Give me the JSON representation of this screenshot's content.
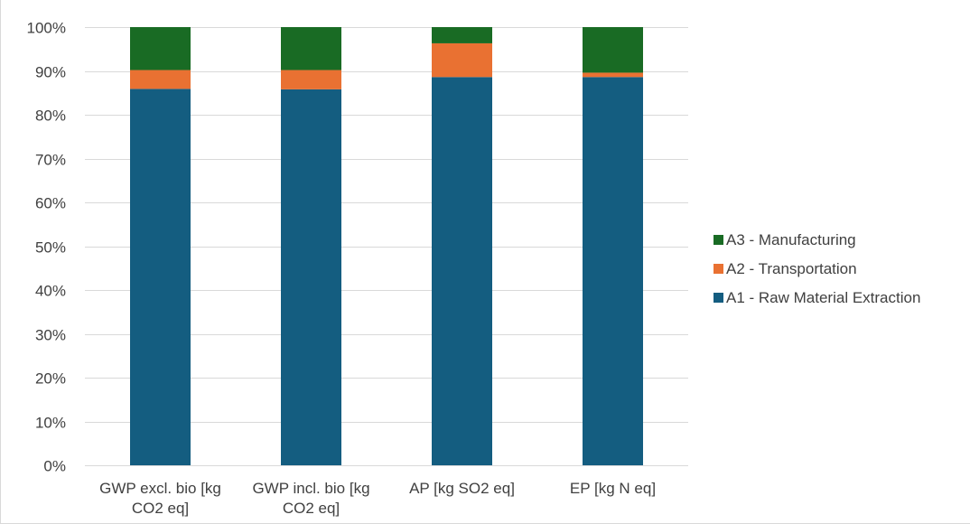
{
  "chart_data": {
    "type": "bar",
    "stacked": true,
    "title": "",
    "xlabel": "",
    "ylabel": "",
    "ylim": [
      0,
      100
    ],
    "y_tick_format": "percent",
    "y_ticks": [
      "0%",
      "10%",
      "20%",
      "30%",
      "40%",
      "50%",
      "60%",
      "70%",
      "80%",
      "90%",
      "100%"
    ],
    "grid": "horizontal",
    "legend_position": "right",
    "categories": [
      [
        "GWP excl. bio [kg",
        "CO2 eq]"
      ],
      [
        "GWP incl. bio [kg",
        "CO2 eq]"
      ],
      [
        "AP [kg SO2 eq]"
      ],
      [
        "EP [kg N eq]"
      ]
    ],
    "series": [
      {
        "name": "A1 - Raw Material Extraction",
        "color": "#145d80",
        "values": [
          85.9,
          85.8,
          88.6,
          88.6
        ]
      },
      {
        "name": "A2 - Transportation",
        "color": "#e97132",
        "values": [
          4.3,
          4.4,
          7.7,
          1.0
        ]
      },
      {
        "name": "A3 - Manufacturing",
        "color": "#196b24",
        "values": [
          9.8,
          9.8,
          3.7,
          10.4
        ]
      }
    ],
    "legend_order": [
      "A3 - Manufacturing",
      "A2 - Transportation",
      "A1 - Raw Material Extraction"
    ]
  }
}
